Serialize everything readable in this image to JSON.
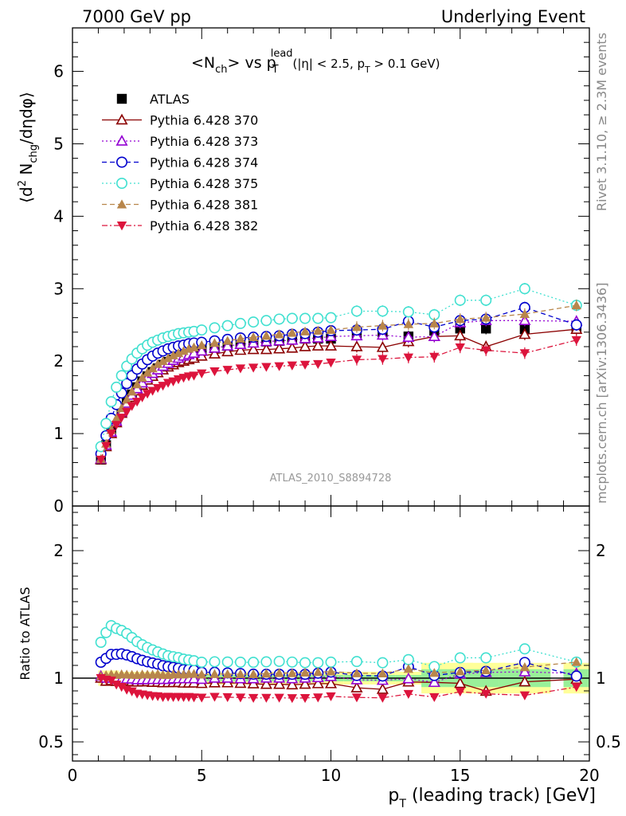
{
  "header": {
    "left": "7000 GeV pp",
    "right": "Underlying Event"
  },
  "main_title": {
    "part1": "<N",
    "part1_sub": "ch",
    "part2": "> vs p",
    "part2_sup": "lead",
    "part2_sub": "T",
    "part3": "(|η| < 2.5, p",
    "part3_sub": "T",
    "part4": " > 0.1 GeV)"
  },
  "side_labels": {
    "rivet": "Rivet 3.1.10, ≥ 2.3M events",
    "mcplots": "mcplots.cern.ch [arXiv:1306.3436]"
  },
  "analysis_label": "ATLAS_2010_S8894728",
  "chart_data": [
    {
      "type": "scatter",
      "ylabel": "⟨d² Nchg/dηdφ⟩",
      "xlim": [
        0,
        20
      ],
      "ylim": [
        0,
        6.6
      ],
      "x_ticks": [
        "0",
        "5",
        "10",
        "15",
        "20"
      ],
      "y_ticks": [
        "0",
        "1",
        "2",
        "3",
        "4",
        "5",
        "6"
      ],
      "x": [
        1.1,
        1.3,
        1.5,
        1.7,
        1.9,
        2.1,
        2.3,
        2.5,
        2.7,
        2.9,
        3.1,
        3.3,
        3.5,
        3.7,
        3.9,
        4.1,
        4.3,
        4.5,
        4.7,
        5.0,
        5.5,
        6.0,
        6.5,
        7.0,
        7.5,
        8.0,
        8.5,
        9.0,
        9.5,
        10.0,
        11.0,
        12.0,
        13.0,
        14.0,
        15.0,
        16.0,
        17.5,
        19.5
      ],
      "series": [
        {
          "name": "ATLAS",
          "color": "#000000",
          "marker": "square-filled",
          "values": [
            0.64,
            0.84,
            1.02,
            1.18,
            1.31,
            1.43,
            1.54,
            1.64,
            1.72,
            1.79,
            1.85,
            1.9,
            1.95,
            1.99,
            2.02,
            2.05,
            2.08,
            2.1,
            2.12,
            2.16,
            2.18,
            2.21,
            2.24,
            2.26,
            2.27,
            2.28,
            2.3,
            2.31,
            2.31,
            2.31,
            2.38,
            2.4,
            2.34,
            2.42,
            2.45,
            2.45,
            2.44,
            2.46
          ]
        },
        {
          "name": "Pythia 6.428 370",
          "color": "#8b0000",
          "marker": "triangle-open",
          "line": "solid",
          "values": [
            0.64,
            0.82,
            1.0,
            1.15,
            1.28,
            1.4,
            1.5,
            1.59,
            1.67,
            1.74,
            1.79,
            1.84,
            1.88,
            1.92,
            1.95,
            1.98,
            2.0,
            2.02,
            2.04,
            2.07,
            2.1,
            2.13,
            2.15,
            2.16,
            2.16,
            2.17,
            2.18,
            2.2,
            2.21,
            2.21,
            2.2,
            2.19,
            2.27,
            2.34,
            2.35,
            2.2,
            2.37,
            2.44
          ]
        },
        {
          "name": "Pythia 6.428 373",
          "color": "#9400d3",
          "marker": "triangle-open",
          "line": "dotted",
          "values": [
            0.65,
            0.84,
            1.02,
            1.17,
            1.3,
            1.42,
            1.53,
            1.62,
            1.7,
            1.77,
            1.83,
            1.88,
            1.93,
            1.97,
            2.01,
            2.04,
            2.07,
            2.09,
            2.11,
            2.14,
            2.18,
            2.21,
            2.23,
            2.25,
            2.27,
            2.28,
            2.29,
            2.31,
            2.32,
            2.34,
            2.35,
            2.36,
            2.33,
            2.34,
            2.53,
            2.56,
            2.56,
            2.55
          ]
        },
        {
          "name": "Pythia 6.428 374",
          "color": "#0000cd",
          "marker": "circle-open",
          "line": "dashed",
          "values": [
            0.72,
            0.97,
            1.21,
            1.4,
            1.56,
            1.69,
            1.8,
            1.89,
            1.96,
            2.02,
            2.07,
            2.11,
            2.14,
            2.17,
            2.19,
            2.21,
            2.22,
            2.24,
            2.25,
            2.26,
            2.28,
            2.3,
            2.32,
            2.33,
            2.34,
            2.35,
            2.37,
            2.38,
            2.4,
            2.42,
            2.43,
            2.44,
            2.55,
            2.47,
            2.56,
            2.58,
            2.74,
            2.5
          ]
        },
        {
          "name": "Pythia 6.428 375",
          "color": "#40e0d0",
          "marker": "circle-open",
          "line": "dotted",
          "values": [
            0.82,
            1.14,
            1.44,
            1.64,
            1.8,
            1.93,
            2.03,
            2.11,
            2.17,
            2.22,
            2.26,
            2.29,
            2.32,
            2.34,
            2.36,
            2.38,
            2.39,
            2.4,
            2.41,
            2.43,
            2.46,
            2.49,
            2.52,
            2.54,
            2.56,
            2.58,
            2.59,
            2.59,
            2.59,
            2.6,
            2.69,
            2.69,
            2.68,
            2.64,
            2.84,
            2.84,
            3.0,
            2.77
          ]
        },
        {
          "name": "Pythia 6.428 381",
          "color": "#b8864b",
          "marker": "triangle-filled",
          "line": "dashed",
          "values": [
            0.65,
            0.86,
            1.05,
            1.21,
            1.35,
            1.47,
            1.58,
            1.68,
            1.77,
            1.84,
            1.9,
            1.96,
            2.0,
            2.04,
            2.08,
            2.11,
            2.14,
            2.17,
            2.19,
            2.22,
            2.25,
            2.28,
            2.31,
            2.33,
            2.35,
            2.37,
            2.39,
            2.41,
            2.42,
            2.43,
            2.47,
            2.49,
            2.51,
            2.52,
            2.58,
            2.6,
            2.65,
            2.77
          ]
        },
        {
          "name": "Pythia 6.428 382",
          "color": "#dc143c",
          "marker": "triangle-down-filled",
          "line": "dashdot",
          "values": [
            0.64,
            0.83,
            1.0,
            1.12,
            1.22,
            1.3,
            1.38,
            1.44,
            1.5,
            1.55,
            1.59,
            1.63,
            1.66,
            1.7,
            1.72,
            1.75,
            1.77,
            1.79,
            1.8,
            1.83,
            1.86,
            1.88,
            1.9,
            1.91,
            1.92,
            1.93,
            1.94,
            1.95,
            1.96,
            1.98,
            2.02,
            2.03,
            2.05,
            2.06,
            2.19,
            2.15,
            2.11,
            2.29
          ]
        }
      ]
    },
    {
      "type": "scatter",
      "ylabel": "Ratio to ATLAS",
      "xlabel": "pT (leading track) [GeV]",
      "xlim": [
        0,
        20
      ],
      "ylim": [
        0.35,
        2.35
      ],
      "y_ticks": [
        "0.5",
        "1",
        "2"
      ],
      "band": "ATLAS uncertainty (green stat, yellow total)"
    }
  ]
}
